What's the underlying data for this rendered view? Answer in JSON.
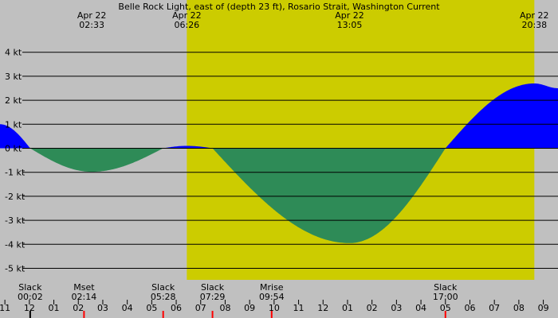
{
  "chart_data": {
    "type": "area",
    "title": "Belle Rock Light, east of (depth 23 ft), Rosario Strait, Washington Current",
    "ylim": [
      -5.5,
      4.5
    ],
    "yticks": [
      {
        "value": 4,
        "label": "4 kt"
      },
      {
        "value": 3,
        "label": "3 kt"
      },
      {
        "value": 2,
        "label": "2 kt"
      },
      {
        "value": 1,
        "label": "1 kt"
      },
      {
        "value": 0,
        "label": "0 kt"
      },
      {
        "value": -1,
        "label": "-1 kt"
      },
      {
        "value": -2,
        "label": "-2 kt"
      },
      {
        "value": -3,
        "label": "-3 kt"
      },
      {
        "value": -4,
        "label": "-4 kt"
      },
      {
        "value": -5,
        "label": "-5 kt"
      }
    ],
    "xrange_hours": [
      -1.2,
      21.6
    ],
    "daylight": {
      "start_hour": 6.433,
      "end_hour": 20.633
    },
    "current_extremes": [
      {
        "hour": -1.2,
        "value": 1.0
      },
      {
        "hour": 0.033,
        "value": 0.0
      },
      {
        "hour": 2.55,
        "value": -0.98
      },
      {
        "hour": 5.467,
        "value": 0.0
      },
      {
        "hour": 6.433,
        "value": 0.1
      },
      {
        "hour": 7.483,
        "value": 0.0
      },
      {
        "hour": 13.083,
        "value": -3.95
      },
      {
        "hour": 17.0,
        "value": 0.0
      },
      {
        "hour": 20.633,
        "value": 2.7
      },
      {
        "hour": 21.6,
        "value": 2.5
      }
    ],
    "top_labels": [
      {
        "hour": 2.55,
        "date": "Apr 22",
        "time": "02:33"
      },
      {
        "hour": 6.433,
        "date": "Apr 22",
        "time": "06:26"
      },
      {
        "hour": 13.083,
        "date": "Apr 22",
        "time": "13:05"
      },
      {
        "hour": 20.633,
        "date": "Apr 22",
        "time": "20:38"
      }
    ],
    "events": [
      {
        "hour": 0.033,
        "name": "Slack",
        "time": "00:02",
        "marker": "#000000"
      },
      {
        "hour": 2.233,
        "name": "Mset",
        "time": "02:14",
        "marker": "#ff0000"
      },
      {
        "hour": 5.467,
        "name": "Slack",
        "time": "05:28",
        "marker": "#ff0000"
      },
      {
        "hour": 7.483,
        "name": "Slack",
        "time": "07:29",
        "marker": "#ff0000"
      },
      {
        "hour": 9.9,
        "name": "Mrise",
        "time": "09:54",
        "marker": "#ff0000"
      },
      {
        "hour": 17.0,
        "name": "Slack",
        "time": "17:00",
        "marker": "#ff0000"
      }
    ],
    "hour_ticks": [
      {
        "hour": -1,
        "label": "11"
      },
      {
        "hour": 0,
        "label": "12"
      },
      {
        "hour": 1,
        "label": "01"
      },
      {
        "hour": 2,
        "label": "02"
      },
      {
        "hour": 3,
        "label": "03"
      },
      {
        "hour": 4,
        "label": "04"
      },
      {
        "hour": 5,
        "label": "05"
      },
      {
        "hour": 6,
        "label": "06"
      },
      {
        "hour": 7,
        "label": "07"
      },
      {
        "hour": 8,
        "label": "08"
      },
      {
        "hour": 9,
        "label": "09"
      },
      {
        "hour": 10,
        "label": "10"
      },
      {
        "hour": 11,
        "label": "11"
      },
      {
        "hour": 12,
        "label": "12"
      },
      {
        "hour": 13,
        "label": "01"
      },
      {
        "hour": 14,
        "label": "02"
      },
      {
        "hour": 15,
        "label": "03"
      },
      {
        "hour": 16,
        "label": "04"
      },
      {
        "hour": 17,
        "label": "05"
      },
      {
        "hour": 18,
        "label": "06"
      },
      {
        "hour": 19,
        "label": "07"
      },
      {
        "hour": 20,
        "label": "08"
      },
      {
        "hour": 21,
        "label": "09"
      }
    ],
    "colors": {
      "background": "#c0c0c0",
      "daylight": "#cccc00",
      "flood": "#0000ff",
      "ebb": "#2e8b57",
      "gridline": "#000000",
      "event_marker": "#ff0000"
    }
  }
}
